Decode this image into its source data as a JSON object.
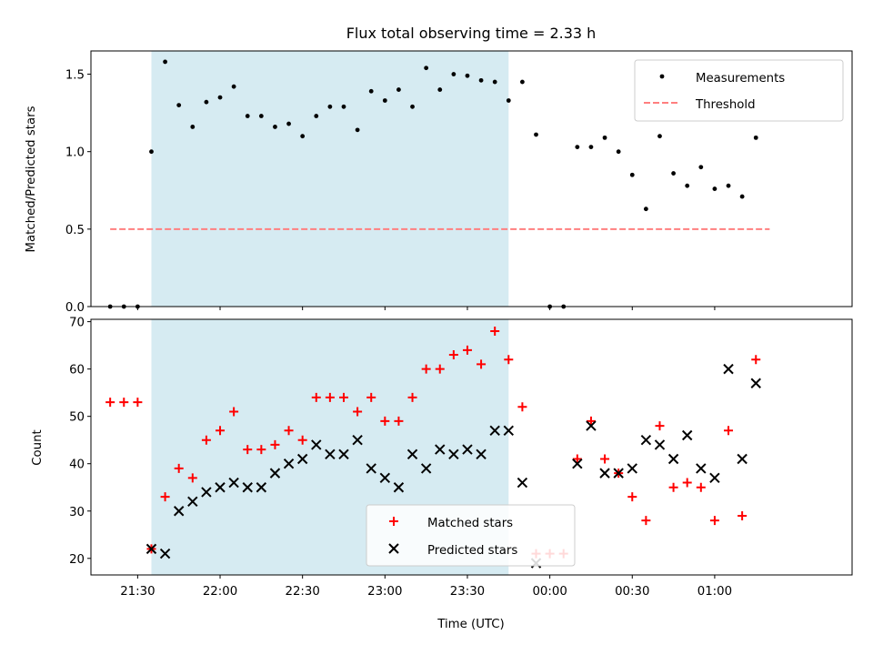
{
  "figure": {
    "title": "Flux total observing time = 2.33 h",
    "xlabel": "Time (UTC)"
  },
  "colors": {
    "shade": "#add8e6",
    "measurement": "#000000",
    "threshold": "#ff7f7f",
    "matched": "#ff0000",
    "predicted": "#000000"
  },
  "chart_data": [
    {
      "type": "scatter",
      "panel": "top",
      "ylabel": "Matched/Predicted stars",
      "ylim": [
        0,
        1.65
      ],
      "yticks": [
        0.0,
        0.5,
        1.0,
        1.5
      ],
      "ytick_labels": [
        "0.0",
        "0.5",
        "1.0",
        "1.5"
      ],
      "xlim": [
        "21:13",
        "01:50"
      ],
      "shaded_interval": [
        "21:35",
        "23:45"
      ],
      "legend": {
        "placement": "top-right",
        "entries": [
          {
            "label": "Measurements",
            "marker": "dot"
          },
          {
            "label": "Threshold",
            "marker": "dashed-line"
          }
        ]
      },
      "series": [
        {
          "name": "Measurements",
          "kind": "dot",
          "x": [
            "21:20",
            "21:25",
            "21:30",
            "21:35",
            "21:40",
            "21:45",
            "21:50",
            "21:55",
            "22:00",
            "22:05",
            "22:10",
            "22:15",
            "22:20",
            "22:25",
            "22:30",
            "22:35",
            "22:40",
            "22:45",
            "22:50",
            "22:55",
            "23:00",
            "23:05",
            "23:10",
            "23:15",
            "23:20",
            "23:25",
            "23:30",
            "23:35",
            "23:40",
            "23:45",
            "23:50",
            "23:55",
            "00:00",
            "00:05",
            "00:10",
            "00:15",
            "00:20",
            "00:25",
            "00:30",
            "00:35",
            "00:40",
            "00:45",
            "00:50",
            "00:55",
            "01:00",
            "01:05",
            "01:10",
            "01:15",
            "01:20"
          ],
          "y": [
            0.0,
            0.0,
            0.0,
            1.0,
            1.58,
            1.3,
            1.16,
            1.32,
            1.35,
            1.42,
            1.23,
            1.23,
            1.16,
            1.18,
            1.1,
            1.23,
            1.29,
            1.29,
            1.14,
            1.39,
            1.33,
            1.4,
            1.29,
            1.54,
            1.4,
            1.5,
            1.49,
            1.46,
            1.45,
            1.33,
            1.45,
            1.11,
            0.0,
            0.0,
            1.03,
            1.03,
            1.09,
            1.0,
            0.85,
            0.63,
            1.1,
            0.86,
            0.78,
            0.9,
            0.76,
            0.78,
            0.71,
            1.09,
            null
          ]
        },
        {
          "name": "Threshold",
          "kind": "dashed-line",
          "x": [
            "21:20",
            "01:20"
          ],
          "y": [
            0.5,
            0.5
          ]
        }
      ]
    },
    {
      "type": "scatter",
      "panel": "bottom",
      "ylabel": "Count",
      "ylim": [
        16.5,
        70.5
      ],
      "yticks": [
        20,
        30,
        40,
        50,
        60,
        70
      ],
      "ytick_labels": [
        "20",
        "30",
        "40",
        "50",
        "60",
        "70"
      ],
      "xlim": [
        "21:13",
        "01:50"
      ],
      "xtick_labels": [
        "21:30",
        "22:00",
        "22:30",
        "23:00",
        "23:30",
        "00:00",
        "00:30",
        "01:00"
      ],
      "shaded_interval": [
        "21:35",
        "23:45"
      ],
      "legend": {
        "placement": "bottom-center",
        "entries": [
          {
            "label": "Matched stars",
            "marker": "plus"
          },
          {
            "label": "Predicted stars",
            "marker": "x"
          }
        ]
      },
      "series": [
        {
          "name": "Matched stars",
          "kind": "plus",
          "x": [
            "21:20",
            "21:25",
            "21:30",
            "21:35",
            "21:40",
            "21:45",
            "21:50",
            "21:55",
            "22:00",
            "22:05",
            "22:10",
            "22:15",
            "22:20",
            "22:25",
            "22:30",
            "22:35",
            "22:40",
            "22:45",
            "22:50",
            "22:55",
            "23:00",
            "23:05",
            "23:10",
            "23:15",
            "23:20",
            "23:25",
            "23:30",
            "23:35",
            "23:40",
            "23:45",
            "23:50",
            "23:55",
            "00:00",
            "00:05",
            "00:10",
            "00:15",
            "00:20",
            "00:25",
            "00:30",
            "00:35",
            "00:40",
            "00:45",
            "00:50",
            "00:55",
            "01:00",
            "01:05",
            "01:10",
            "01:15"
          ],
          "y": [
            53,
            53,
            53,
            22,
            33,
            39,
            37,
            45,
            47,
            51,
            43,
            43,
            44,
            47,
            45,
            54,
            54,
            54,
            51,
            54,
            49,
            49,
            54,
            60,
            60,
            63,
            64,
            61,
            68,
            62,
            52,
            21,
            21,
            21,
            41,
            49,
            41,
            38,
            33,
            28,
            48,
            35,
            36,
            35,
            28,
            47,
            29,
            62
          ]
        },
        {
          "name": "Predicted stars",
          "kind": "x",
          "x": [
            "21:35",
            "21:40",
            "21:45",
            "21:50",
            "21:55",
            "22:00",
            "22:05",
            "22:10",
            "22:15",
            "22:20",
            "22:25",
            "22:30",
            "22:35",
            "22:40",
            "22:45",
            "22:50",
            "22:55",
            "23:00",
            "23:05",
            "23:10",
            "23:15",
            "23:20",
            "23:25",
            "23:30",
            "23:35",
            "23:40",
            "23:45",
            "23:50",
            "23:55",
            "00:10",
            "00:15",
            "00:20",
            "00:25",
            "00:30",
            "00:35",
            "00:40",
            "00:45",
            "00:50",
            "00:55",
            "01:00",
            "01:05",
            "01:10",
            "01:15"
          ],
          "y": [
            22,
            21,
            30,
            32,
            34,
            35,
            36,
            35,
            35,
            38,
            40,
            41,
            44,
            42,
            42,
            45,
            39,
            37,
            35,
            42,
            39,
            43,
            42,
            43,
            42,
            47,
            47,
            36,
            19,
            40,
            48,
            38,
            38,
            39,
            45,
            44,
            41,
            46,
            39,
            37,
            60,
            41,
            57
          ]
        }
      ]
    }
  ]
}
